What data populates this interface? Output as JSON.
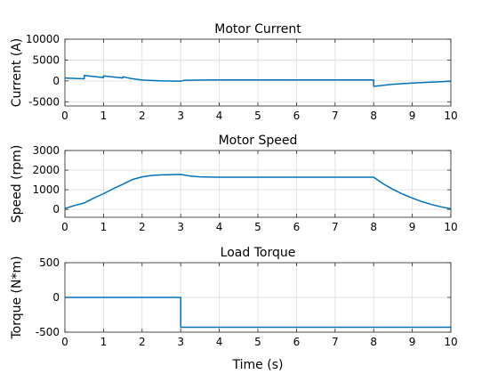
{
  "figure": {
    "xlabel": "Time (s)"
  },
  "chart_data": [
    {
      "type": "line",
      "title": "Motor Current",
      "xlabel": "",
      "ylabel": "Current (A)",
      "xlim": [
        0,
        10
      ],
      "ylim": [
        -6000,
        10000
      ],
      "xticks": [
        "0",
        "1",
        "2",
        "3",
        "4",
        "5",
        "6",
        "7",
        "8",
        "9",
        "10"
      ],
      "yticks": [
        "10000",
        "5000",
        "0",
        "-5000"
      ],
      "ytick_values": [
        10000,
        5000,
        0,
        -5000
      ],
      "grid": true,
      "series": [
        {
          "x": [
            0,
            0.5,
            0.5,
            1.0,
            1.0,
            1.5,
            1.5,
            1.7,
            2.0,
            2.5,
            3.0,
            3.1,
            3.5,
            4.0,
            5.0,
            6.0,
            7.0,
            8.0,
            8.0,
            8.2,
            8.5,
            9.0,
            9.5,
            10.0
          ],
          "y": [
            700,
            500,
            1300,
            800,
            1200,
            700,
            1000,
            600,
            200,
            0,
            -50,
            150,
            200,
            250,
            250,
            250,
            250,
            250,
            -1300,
            -1100,
            -800,
            -500,
            -300,
            -100
          ]
        }
      ]
    },
    {
      "type": "line",
      "title": "Motor Speed",
      "xlabel": "",
      "ylabel": "Speed (rpm)",
      "xlim": [
        0,
        10
      ],
      "ylim": [
        -400,
        3000
      ],
      "xticks": [
        "0",
        "1",
        "2",
        "3",
        "4",
        "5",
        "6",
        "7",
        "8",
        "9",
        "10"
      ],
      "yticks": [
        "3000",
        "2000",
        "1000",
        "0"
      ],
      "ytick_values": [
        3000,
        2000,
        1000,
        0
      ],
      "grid": true,
      "series": [
        {
          "x": [
            0,
            0.25,
            0.5,
            0.75,
            1.0,
            1.25,
            1.5,
            1.75,
            2.0,
            2.25,
            2.5,
            2.75,
            3.0,
            3.25,
            3.5,
            4.0,
            5.0,
            6.0,
            7.0,
            8.0,
            8.25,
            8.5,
            8.75,
            9.0,
            9.25,
            9.5,
            9.75,
            10.0
          ],
          "y": [
            50,
            200,
            330,
            580,
            800,
            1050,
            1280,
            1520,
            1660,
            1730,
            1760,
            1770,
            1780,
            1700,
            1660,
            1640,
            1640,
            1640,
            1640,
            1640,
            1300,
            1020,
            780,
            580,
            400,
            250,
            130,
            30
          ]
        }
      ]
    },
    {
      "type": "line",
      "title": "Load Torque",
      "xlabel": "Time (s)",
      "ylabel": "Torque (N*m)",
      "xlim": [
        0,
        10
      ],
      "ylim": [
        -500,
        500
      ],
      "xticks": [
        "0",
        "1",
        "2",
        "3",
        "4",
        "5",
        "6",
        "7",
        "8",
        "9",
        "10"
      ],
      "yticks": [
        "500",
        "0",
        "-500"
      ],
      "ytick_values": [
        500,
        0,
        -500
      ],
      "grid": true,
      "series": [
        {
          "x": [
            0,
            3.0,
            3.0,
            10.0
          ],
          "y": [
            0,
            0,
            -430,
            -430
          ]
        }
      ]
    }
  ]
}
